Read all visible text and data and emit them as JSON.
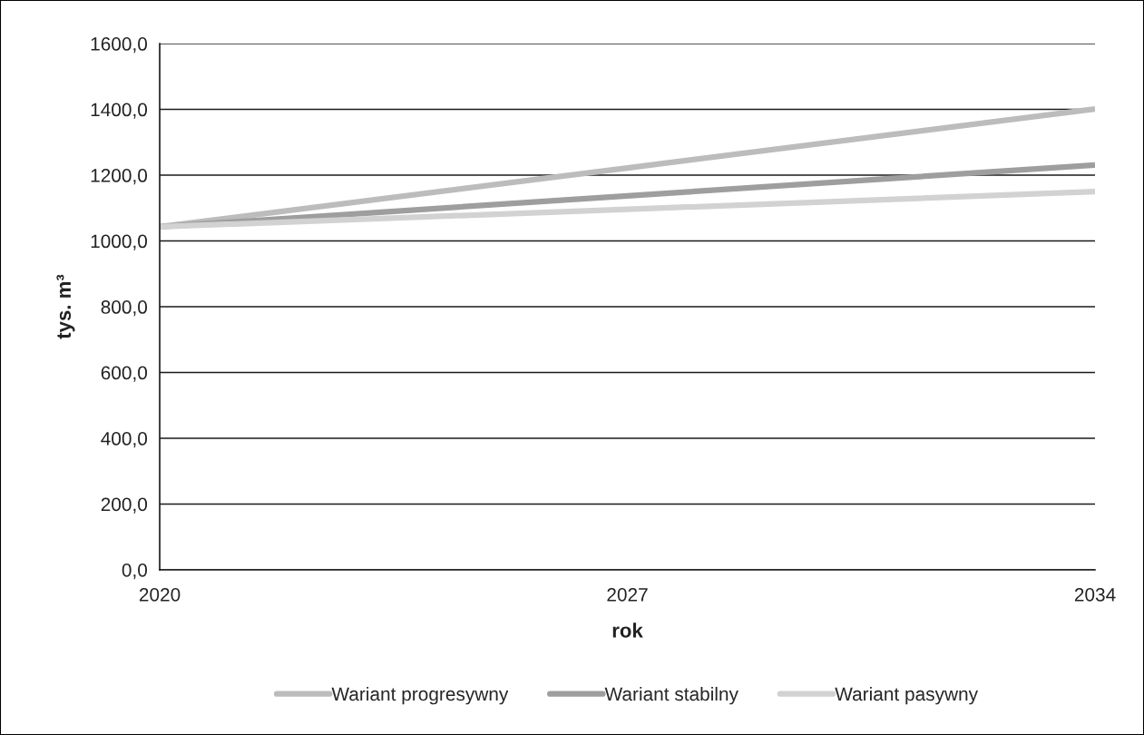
{
  "chart_data": {
    "type": "line",
    "xlabel": "rok",
    "ylabel": "tys. m³",
    "x": [
      2020,
      2027,
      2034
    ],
    "series": [
      {
        "name": "Wariant progresywny",
        "color": "#bcbcbc",
        "values": [
          1043,
          1222,
          1401
        ]
      },
      {
        "name": "Wariant stabilny",
        "color": "#9e9e9e",
        "values": [
          1043,
          1137,
          1231
        ]
      },
      {
        "name": "Wariant pasywny",
        "color": "#d2d2d2",
        "values": [
          1043,
          1096,
          1150
        ]
      }
    ],
    "xlim": [
      2020,
      2034
    ],
    "xticks": [
      2020,
      2027,
      2034
    ],
    "ylim": [
      0,
      1600
    ],
    "yticks": [
      {
        "value": 0,
        "label": "0,0"
      },
      {
        "value": 200,
        "label": "200,0"
      },
      {
        "value": 400,
        "label": "400,0"
      },
      {
        "value": 600,
        "label": "600,0"
      },
      {
        "value": 800,
        "label": "800,0"
      },
      {
        "value": 1000,
        "label": "1000,0"
      },
      {
        "value": 1200,
        "label": "1200,0"
      },
      {
        "value": 1400,
        "label": "1400,0"
      },
      {
        "value": 1600,
        "label": "1600,0"
      }
    ],
    "grid": "y",
    "legend": "bottom",
    "marker": "none",
    "line_style": "solid"
  }
}
